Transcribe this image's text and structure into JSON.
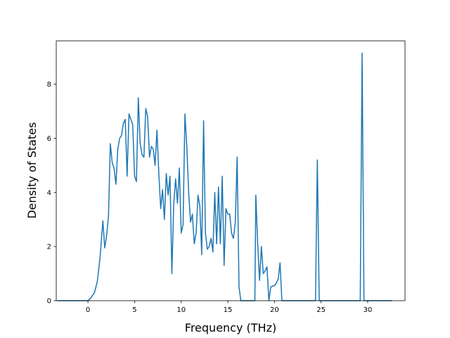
{
  "chart_data": {
    "type": "line",
    "title": "",
    "xlabel": "Frequency (THz)",
    "ylabel": "Density of States",
    "xlim": [
      -3.4,
      34.0
    ],
    "ylim": [
      0,
      9.6
    ],
    "xticks": [
      0,
      5,
      10,
      15,
      20,
      25,
      30
    ],
    "yticks": [
      0,
      2,
      4,
      6,
      8
    ],
    "grid": false,
    "legend": "none",
    "series": [
      {
        "color": "#1f77b4",
        "x": [
          -3.3,
          -1.0,
          0.0,
          0.3,
          0.7,
          1.0,
          1.3,
          1.6,
          1.8,
          2.0,
          2.2,
          2.4,
          2.6,
          2.8,
          3.0,
          3.2,
          3.4,
          3.6,
          3.8,
          4.0,
          4.2,
          4.4,
          4.6,
          4.8,
          5.0,
          5.2,
          5.4,
          5.6,
          5.8,
          6.0,
          6.2,
          6.4,
          6.6,
          6.8,
          7.0,
          7.2,
          7.4,
          7.6,
          7.8,
          8.0,
          8.2,
          8.4,
          8.6,
          8.8,
          9.0,
          9.2,
          9.4,
          9.6,
          9.8,
          10.0,
          10.2,
          10.4,
          10.6,
          10.8,
          11.0,
          11.2,
          11.4,
          11.6,
          11.8,
          12.0,
          12.2,
          12.4,
          12.6,
          12.8,
          13.0,
          13.2,
          13.4,
          13.6,
          13.8,
          14.0,
          14.2,
          14.4,
          14.6,
          14.8,
          15.0,
          15.2,
          15.4,
          15.6,
          15.8,
          16.0,
          16.2,
          16.4,
          17.0,
          17.9,
          18.0,
          18.2,
          18.4,
          18.6,
          18.8,
          19.0,
          19.2,
          19.4,
          19.6,
          19.8,
          20.0,
          20.2,
          20.4,
          20.6,
          20.8,
          21.0,
          24.4,
          24.6,
          24.8,
          29.2,
          29.4,
          29.6,
          32.6
        ],
        "y": [
          0,
          0,
          0,
          0.1,
          0.3,
          0.7,
          1.6,
          2.95,
          1.95,
          2.4,
          3.1,
          5.8,
          5.1,
          4.9,
          4.3,
          5.6,
          6.0,
          6.1,
          6.55,
          6.7,
          4.6,
          6.9,
          6.7,
          6.5,
          4.6,
          4.4,
          7.5,
          5.8,
          5.4,
          5.3,
          7.1,
          6.8,
          5.3,
          5.7,
          5.6,
          5.0,
          6.3,
          4.7,
          3.4,
          4.1,
          3.0,
          4.7,
          3.9,
          4.6,
          1.0,
          3.6,
          4.5,
          3.6,
          4.9,
          2.5,
          2.8,
          6.9,
          5.7,
          4.0,
          2.9,
          3.2,
          2.1,
          2.5,
          3.9,
          3.5,
          1.7,
          6.65,
          2.5,
          1.9,
          2.0,
          2.3,
          1.8,
          4.0,
          2.1,
          4.2,
          2.1,
          4.6,
          1.3,
          3.4,
          3.2,
          3.2,
          2.5,
          2.3,
          2.9,
          5.3,
          0.5,
          0,
          0,
          0,
          3.9,
          2.1,
          0.75,
          2.0,
          1.0,
          1.1,
          1.25,
          0,
          0.5,
          0.55,
          0.55,
          0.65,
          0.8,
          1.4,
          0,
          0,
          0,
          5.2,
          0,
          0,
          9.15,
          0,
          0
        ]
      }
    ]
  }
}
